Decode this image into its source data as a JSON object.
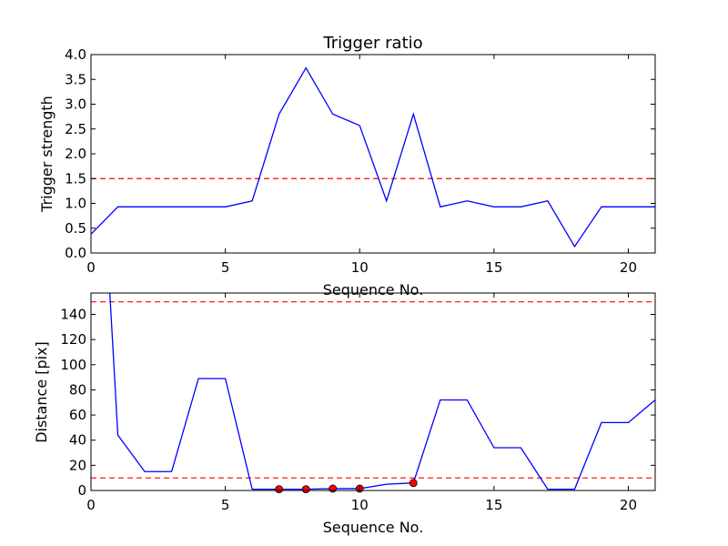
{
  "chart_data": [
    {
      "type": "line",
      "title": "Trigger ratio",
      "xlabel": "Sequence No.",
      "ylabel": "Trigger strength",
      "xlim": [
        0,
        21
      ],
      "ylim": [
        0,
        4
      ],
      "xticks": [
        "0",
        "5",
        "10",
        "15",
        "20"
      ],
      "xtick_values": [
        0,
        5,
        10,
        15,
        20
      ],
      "yticks": [
        "0.0",
        "0.5",
        "1.0",
        "1.5",
        "2.0",
        "2.5",
        "3.0",
        "3.5",
        "4.0"
      ],
      "ytick_values": [
        0,
        0.5,
        1.0,
        1.5,
        2.0,
        2.5,
        3.0,
        3.5,
        4.0
      ],
      "grid": false,
      "series": [
        {
          "color": "#0000ff",
          "style": "solid",
          "x": [
            0,
            1,
            2,
            3,
            4,
            5,
            6,
            7,
            8,
            9,
            10,
            11,
            12,
            13,
            14,
            15,
            16,
            17,
            18,
            19,
            20,
            21
          ],
          "y": [
            0.38,
            0.93,
            0.93,
            0.93,
            0.93,
            0.93,
            1.05,
            2.8,
            3.73,
            2.8,
            2.57,
            1.05,
            2.8,
            0.93,
            1.05,
            0.93,
            0.93,
            1.05,
            0.13,
            0.93,
            0.93,
            0.93
          ]
        }
      ],
      "hlines": [
        {
          "y": 1.5,
          "color": "#ff0000",
          "style": "dashed"
        }
      ]
    },
    {
      "type": "line",
      "title": "",
      "xlabel": "Sequence No.",
      "ylabel": "Distance [pix]",
      "xlim": [
        0,
        21
      ],
      "ylim": [
        0,
        157
      ],
      "xticks": [
        "0",
        "5",
        "10",
        "15",
        "20"
      ],
      "xtick_values": [
        0,
        5,
        10,
        15,
        20
      ],
      "yticks": [
        "0",
        "20",
        "40",
        "60",
        "80",
        "100",
        "120",
        "140"
      ],
      "ytick_values": [
        0,
        20,
        40,
        60,
        80,
        100,
        120,
        140
      ],
      "grid": false,
      "series": [
        {
          "color": "#0000ff",
          "style": "solid",
          "x": [
            0.7,
            1,
            2,
            3,
            4,
            5,
            6,
            7,
            8,
            9,
            10,
            11,
            12,
            13,
            14,
            15,
            16,
            17,
            18,
            19,
            20,
            21
          ],
          "y": [
            157,
            44,
            15,
            15,
            89,
            89,
            1,
            1,
            1,
            1.5,
            1.5,
            5,
            6,
            72,
            72,
            34,
            34,
            1,
            1,
            54,
            54,
            72
          ]
        }
      ],
      "markers": {
        "color": "#ff0000",
        "x": [
          7,
          8,
          9,
          10,
          12
        ],
        "y": [
          1,
          1,
          1.5,
          1.5,
          6
        ]
      },
      "hlines": [
        {
          "y": 150,
          "color": "#ff0000",
          "style": "dashed"
        },
        {
          "y": 10,
          "color": "#ff0000",
          "style": "dashed"
        }
      ]
    }
  ]
}
